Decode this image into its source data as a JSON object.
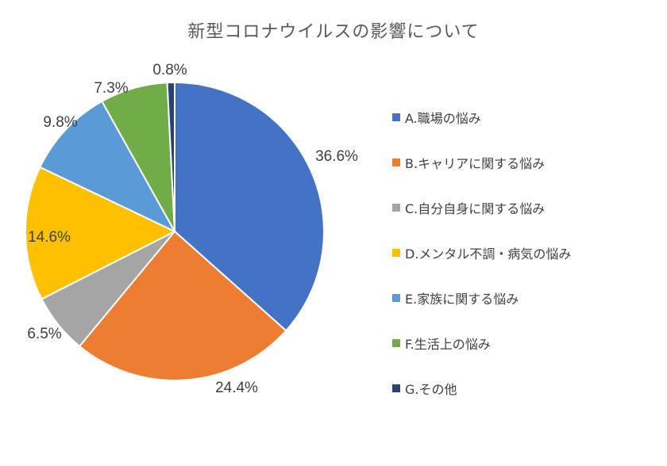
{
  "chart_data": {
    "type": "pie",
    "title": "新型コロナウイルスの影響について",
    "categories": [
      "A.職場の悩み",
      "B.キャリアに関する悩み",
      "C.自分自身に関する悩み",
      "D.メンタル不調・病気の悩み",
      "E.家族に関する悩み",
      "F.生活上の悩み",
      "G.その他"
    ],
    "values": [
      36.6,
      24.4,
      6.5,
      14.6,
      9.8,
      7.3,
      0.8
    ],
    "data_labels": [
      "36.6%",
      "24.4%",
      "6.5%",
      "14.6%",
      "9.8%",
      "7.3%",
      "0.8%"
    ],
    "colors": [
      "#4472C4",
      "#ED7D31",
      "#A5A5A5",
      "#FFC000",
      "#5B9BD5",
      "#70AD47",
      "#264478"
    ],
    "start_angle": "12 o'clock",
    "direction": "clockwise",
    "legend_position": "right"
  }
}
